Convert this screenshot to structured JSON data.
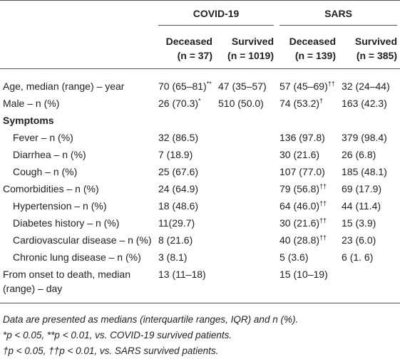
{
  "table": {
    "groups": [
      "COVID-19",
      "SARS"
    ],
    "columns": [
      {
        "label": "Deceased",
        "n": "(n = 37)"
      },
      {
        "label": "Survived",
        "n": "(n = 1019)"
      },
      {
        "label": "Deceased",
        "n": "(n = 139)"
      },
      {
        "label": "Survived",
        "n": "(n = 385)"
      }
    ],
    "rows": [
      {
        "label": "Age, median (range) – year",
        "cells": [
          {
            "text": "70 (65–81)",
            "sup": "**"
          },
          "47 (35–57)",
          {
            "text": "57 (45–69)",
            "sup": "††"
          },
          "32 (24–44)"
        ]
      },
      {
        "label": "Male – n (%)",
        "cells": [
          {
            "text": "26 (70.3)",
            "sup": "*"
          },
          "510 (50.0)",
          {
            "text": "74 (53.2)",
            "sup": "†"
          },
          "163 (42.3)"
        ]
      },
      {
        "label": "Symptoms",
        "section": true
      },
      {
        "label": "Fever – n (%)",
        "indent": true,
        "cells": [
          "32 (86.5)",
          null,
          "136 (97.8)",
          "379 (98.4)"
        ]
      },
      {
        "label": "Diarrhea – n (%)",
        "indent": true,
        "cells": [
          "7 (18.9)",
          null,
          "30 (21.6)",
          "26 (6.8)"
        ]
      },
      {
        "label": "Cough – n (%)",
        "indent": true,
        "cells": [
          "25 (67.6)",
          null,
          "107 (77.0)",
          "185 (48.1)"
        ]
      },
      {
        "label": "Comorbidities – n (%)",
        "cells": [
          "24 (64.9)",
          null,
          {
            "text": "79 (56.8)",
            "sup": "††"
          },
          "69 (17.9)"
        ]
      },
      {
        "label": "Hypertension – n (%)",
        "indent": true,
        "cells": [
          "18 (48.6)",
          null,
          {
            "text": "64 (46.0)",
            "sup": "††"
          },
          "44 (11.4)"
        ]
      },
      {
        "label": "Diabetes history – n (%)",
        "indent": true,
        "cells": [
          "11(29.7)",
          null,
          {
            "text": "30 (21.6)",
            "sup": "††"
          },
          "15 (3.9)"
        ]
      },
      {
        "label": "Cardiovascular disease – n (%)",
        "indent": true,
        "cells": [
          "8 (21.6)",
          null,
          {
            "text": "40 (28.8)",
            "sup": "††"
          },
          "23 (6.0)"
        ]
      },
      {
        "label": "Chronic lung disease – n (%)",
        "indent": true,
        "cells": [
          "3 (8.1)",
          null,
          "5 (3.6)",
          "6 (1. 6)"
        ]
      },
      {
        "label": "From onset to death, median (range) – day",
        "cells": [
          "13 (11–18)",
          null,
          "15 (10–19)",
          null
        ]
      }
    ],
    "footnotes": [
      "Data are presented as medians (interquartile ranges, IQR) and n (%).",
      "*p < 0.05, **p < 0.01, vs. COVID-19 survived patients.",
      "†p < 0.05, ††p < 0.01, vs. SARS survived patients."
    ]
  }
}
